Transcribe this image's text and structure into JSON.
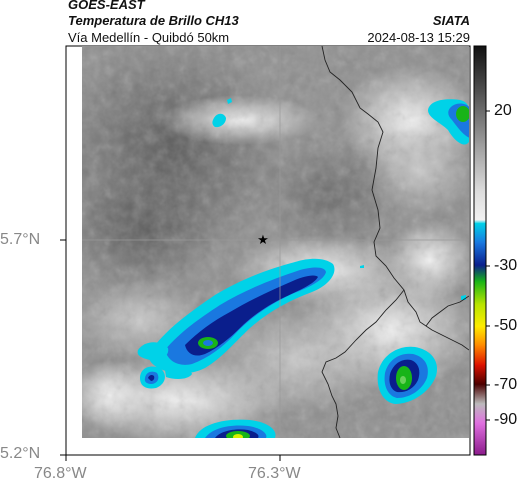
{
  "header": {
    "satellite": "GOES-EAST",
    "product": "Temperatura de Brillo CH13",
    "region": "Vía Medellín - Quibdó 50km",
    "agency": "SIATA",
    "timestamp": "2024-08-13 15:29"
  },
  "axes": {
    "lat_ticks": [
      "5.7°N",
      "5.2°N"
    ],
    "lon_ticks": [
      "76.8°W",
      "76.3°W"
    ]
  },
  "colorbar": {
    "tick_labels": [
      "20",
      "-30",
      "-50",
      "-70",
      "-90"
    ],
    "stops": [
      {
        "v": 35,
        "color": "#111111"
      },
      {
        "v": 20,
        "color": "#555555"
      },
      {
        "v": 5,
        "color": "#9a9a9a"
      },
      {
        "v": -10,
        "color": "#dcdcdc"
      },
      {
        "v": -19,
        "color": "#f2f2f2"
      },
      {
        "v": -20,
        "color": "#00d2e8"
      },
      {
        "v": -26,
        "color": "#1a78e0"
      },
      {
        "v": -33,
        "color": "#0a1e8c"
      },
      {
        "v": -38,
        "color": "#18b418"
      },
      {
        "v": -45,
        "color": "#b6e400"
      },
      {
        "v": -52,
        "color": "#ffec00"
      },
      {
        "v": -58,
        "color": "#ff8800"
      },
      {
        "v": -64,
        "color": "#dd1100"
      },
      {
        "v": -70,
        "color": "#4a0000"
      },
      {
        "v": -76,
        "color": "#bbbbbb"
      },
      {
        "v": -82,
        "color": "#e070e0"
      },
      {
        "v": -92,
        "color": "#8a1a8a"
      }
    ],
    "vmin": -92,
    "vmax": 35
  },
  "colors": {
    "frame": "#000000",
    "border_line": "#222222",
    "grid_line": "#999999",
    "marker": "#000000",
    "cloud_cyan": "#00d2e8",
    "cloud_blue": "#1a78e0",
    "cloud_navy": "#0a1e8c",
    "cloud_green": "#18b418",
    "cloud_yellow": "#d8f000"
  },
  "icons": {
    "city_marker": "star-icon"
  }
}
